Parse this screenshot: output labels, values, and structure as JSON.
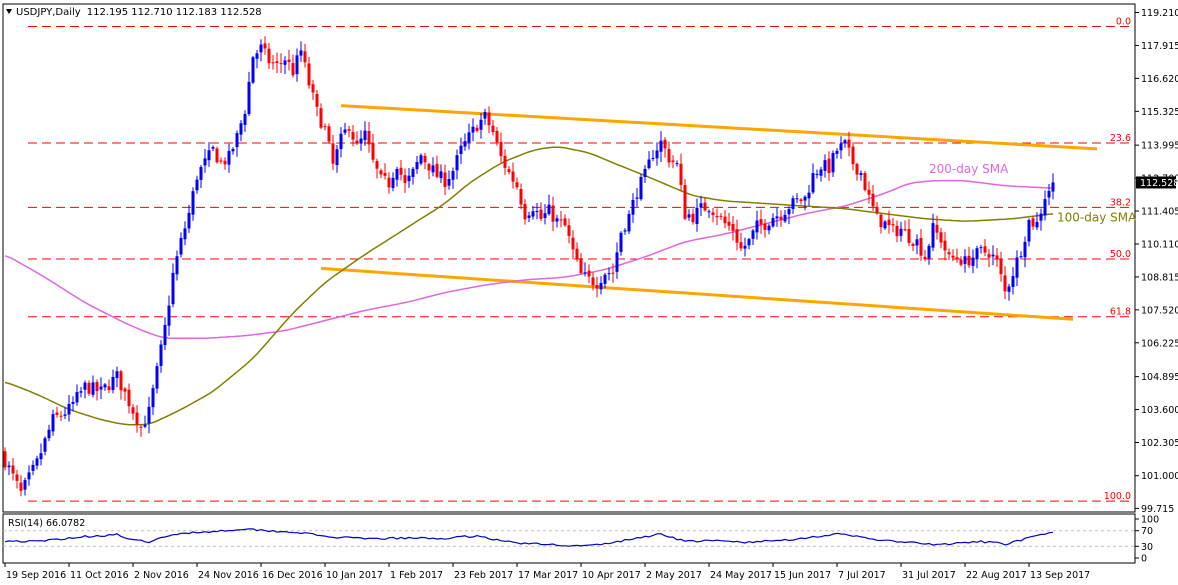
{
  "header": {
    "symbol_label": "USDJPY,Daily",
    "ohlc": "112.195 112.710 112.183 112.528"
  },
  "rsi_header": {
    "label": "RSI(14) 66.0782"
  },
  "colors": {
    "bull": "#0000ff",
    "bear": "#ff0000",
    "fib": "#ff0000",
    "sma200": "#e066e0",
    "sma100": "#808000",
    "channel": "#ffa500",
    "rsi": "#0000cd",
    "grid": "#c0c0c0"
  },
  "chart_data": [
    {
      "type": "candlestick",
      "ylim": [
        99.75,
        119.21
      ],
      "y_ticks": [
        "119.210",
        "117.915",
        "116.620",
        "115.325",
        "113.995",
        "112.700",
        "111.405",
        "110.110",
        "108.815",
        "107.520",
        "106.225",
        "104.895",
        "103.600",
        "102.305",
        "101.000",
        "99.715"
      ],
      "last_price": "112.528",
      "x_ticks": [
        {
          "label": "19 Sep 2016",
          "index": 0
        },
        {
          "label": "11 Oct 2016",
          "index": 16
        },
        {
          "label": "2 Nov 2016",
          "index": 32
        },
        {
          "label": "24 Nov 2016",
          "index": 48
        },
        {
          "label": "16 Dec 2016",
          "index": 64
        },
        {
          "label": "10 Jan 2017",
          "index": 80
        },
        {
          "label": "1 Feb 2017",
          "index": 96
        },
        {
          "label": "23 Feb 2017",
          "index": 112
        },
        {
          "label": "17 Mar 2017",
          "index": 128
        },
        {
          "label": "10 Apr 2017",
          "index": 144
        },
        {
          "label": "2 May 2017",
          "index": 160
        },
        {
          "label": "24 May 2017",
          "index": 176
        },
        {
          "label": "15 Jun 2017",
          "index": 192
        },
        {
          "label": "7 Jul 2017",
          "index": 208
        },
        {
          "label": "31 Jul 2017",
          "index": 224
        },
        {
          "label": "22 Aug 2017",
          "index": 240
        },
        {
          "label": "13 Sep 2017",
          "index": 256
        }
      ],
      "close_path": [
        [
          0,
          101.6
        ],
        [
          4,
          100.3
        ],
        [
          8,
          101.5
        ],
        [
          12,
          103.2
        ],
        [
          16,
          103.6
        ],
        [
          20,
          104.5
        ],
        [
          24,
          104.3
        ],
        [
          28,
          104.9
        ],
        [
          31,
          103.9
        ],
        [
          34,
          102.9
        ],
        [
          36,
          103.5
        ],
        [
          38,
          105.1
        ],
        [
          40,
          106.8
        ],
        [
          42,
          108.9
        ],
        [
          44,
          110.2
        ],
        [
          46,
          111.3
        ],
        [
          48,
          112.8
        ],
        [
          50,
          113.3
        ],
        [
          52,
          113.8
        ],
        [
          54,
          113.3
        ],
        [
          56,
          113.5
        ],
        [
          58,
          114.3
        ],
        [
          60,
          115.4
        ],
        [
          62,
          117.5
        ],
        [
          64,
          117.8
        ],
        [
          66,
          117.3
        ],
        [
          68,
          117.1
        ],
        [
          70,
          117.4
        ],
        [
          72,
          116.9
        ],
        [
          74,
          117.7
        ],
        [
          76,
          116.4
        ],
        [
          78,
          115.3
        ],
        [
          80,
          114.6
        ],
        [
          82,
          113.2
        ],
        [
          84,
          114.2
        ],
        [
          86,
          114.8
        ],
        [
          88,
          113.9
        ],
        [
          90,
          114.4
        ],
        [
          92,
          113.3
        ],
        [
          94,
          112.6
        ],
        [
          96,
          112.5
        ],
        [
          98,
          113.3
        ],
        [
          100,
          112.4
        ],
        [
          102,
          112.9
        ],
        [
          104,
          113.6
        ],
        [
          106,
          113.2
        ],
        [
          108,
          112.8
        ],
        [
          110,
          112.6
        ],
        [
          112,
          113.0
        ],
        [
          114,
          113.8
        ],
        [
          116,
          114.3
        ],
        [
          118,
          114.8
        ],
        [
          120,
          115.1
        ],
        [
          122,
          114.5
        ],
        [
          124,
          113.5
        ],
        [
          126,
          112.9
        ],
        [
          128,
          112.4
        ],
        [
          130,
          111.3
        ],
        [
          132,
          111.6
        ],
        [
          134,
          111.1
        ],
        [
          136,
          111.4
        ],
        [
          138,
          111.0
        ],
        [
          140,
          110.8
        ],
        [
          142,
          109.8
        ],
        [
          144,
          108.9
        ],
        [
          146,
          108.7
        ],
        [
          148,
          108.6
        ],
        [
          150,
          109.0
        ],
        [
          152,
          109.0
        ],
        [
          154,
          110.6
        ],
        [
          156,
          111.2
        ],
        [
          158,
          112.2
        ],
        [
          160,
          112.8
        ],
        [
          162,
          113.7
        ],
        [
          164,
          114.1
        ],
        [
          166,
          113.5
        ],
        [
          168,
          113.2
        ],
        [
          170,
          111.3
        ],
        [
          172,
          111.2
        ],
        [
          174,
          111.5
        ],
        [
          176,
          111.6
        ],
        [
          178,
          111.3
        ],
        [
          180,
          110.9
        ],
        [
          182,
          110.7
        ],
        [
          184,
          109.9
        ],
        [
          186,
          110.2
        ],
        [
          188,
          110.8
        ],
        [
          190,
          110.9
        ],
        [
          192,
          111.2
        ],
        [
          194,
          111.3
        ],
        [
          196,
          111.6
        ],
        [
          198,
          111.8
        ],
        [
          200,
          111.9
        ],
        [
          202,
          112.8
        ],
        [
          204,
          113.2
        ],
        [
          206,
          113.1
        ],
        [
          208,
          113.8
        ],
        [
          210,
          114.0
        ],
        [
          212,
          113.3
        ],
        [
          214,
          112.9
        ],
        [
          216,
          111.9
        ],
        [
          218,
          111.1
        ],
        [
          220,
          110.9
        ],
        [
          222,
          110.6
        ],
        [
          224,
          110.7
        ],
        [
          226,
          110.4
        ],
        [
          228,
          110.2
        ],
        [
          230,
          109.6
        ],
        [
          232,
          110.7
        ],
        [
          234,
          110.3
        ],
        [
          236,
          109.5
        ],
        [
          238,
          109.6
        ],
        [
          240,
          109.4
        ],
        [
          242,
          109.6
        ],
        [
          244,
          109.8
        ],
        [
          246,
          109.8
        ],
        [
          248,
          109.4
        ],
        [
          250,
          108.2
        ],
        [
          252,
          109.0
        ],
        [
          254,
          109.9
        ],
        [
          256,
          111.0
        ],
        [
          258,
          110.9
        ],
        [
          260,
          112.0
        ],
        [
          262,
          112.528
        ]
      ],
      "sma200_path": [
        [
          0,
          109.7
        ],
        [
          10,
          108.8
        ],
        [
          20,
          107.8
        ],
        [
          30,
          107.0
        ],
        [
          36,
          106.6
        ],
        [
          40,
          106.4
        ],
        [
          50,
          106.4
        ],
        [
          60,
          106.5
        ],
        [
          70,
          106.7
        ],
        [
          80,
          107.1
        ],
        [
          90,
          107.5
        ],
        [
          100,
          107.8
        ],
        [
          110,
          108.2
        ],
        [
          120,
          108.5
        ],
        [
          130,
          108.7
        ],
        [
          140,
          108.8
        ],
        [
          150,
          109.1
        ],
        [
          160,
          109.6
        ],
        [
          170,
          110.2
        ],
        [
          180,
          110.5
        ],
        [
          190,
          110.9
        ],
        [
          200,
          111.3
        ],
        [
          210,
          111.6
        ],
        [
          220,
          112.1
        ],
        [
          226,
          112.5
        ],
        [
          232,
          112.6
        ],
        [
          240,
          112.6
        ],
        [
          250,
          112.4
        ],
        [
          262,
          112.3
        ]
      ],
      "sma100_path": [
        [
          0,
          104.7
        ],
        [
          8,
          104.2
        ],
        [
          16,
          103.6
        ],
        [
          24,
          103.2
        ],
        [
          30,
          103.0
        ],
        [
          36,
          103.0
        ],
        [
          44,
          103.6
        ],
        [
          52,
          104.3
        ],
        [
          62,
          105.6
        ],
        [
          72,
          107.4
        ],
        [
          80,
          108.6
        ],
        [
          90,
          109.7
        ],
        [
          100,
          110.7
        ],
        [
          110,
          111.7
        ],
        [
          116,
          112.5
        ],
        [
          124,
          113.3
        ],
        [
          132,
          113.8
        ],
        [
          138,
          113.95
        ],
        [
          146,
          113.7
        ],
        [
          152,
          113.3
        ],
        [
          160,
          112.8
        ],
        [
          166,
          112.4
        ],
        [
          172,
          112.0
        ],
        [
          180,
          111.8
        ],
        [
          190,
          111.7
        ],
        [
          200,
          111.6
        ],
        [
          210,
          111.5
        ],
        [
          220,
          111.3
        ],
        [
          230,
          111.1
        ],
        [
          240,
          111.0
        ],
        [
          252,
          111.1
        ],
        [
          262,
          111.3
        ]
      ],
      "channel_upper": [
        [
          84,
          115.55
        ],
        [
          273,
          113.85
        ]
      ],
      "channel_lower": [
        [
          79,
          109.15
        ],
        [
          267,
          107.15
        ]
      ],
      "fib_levels": [
        {
          "label": "0.0",
          "value": 118.66
        },
        {
          "label": "23.6",
          "value": 114.08
        },
        {
          "label": "38.2",
          "value": 111.55
        },
        {
          "label": "50.0",
          "value": 109.52
        },
        {
          "label": "61.8",
          "value": 107.25
        },
        {
          "label": "100.0",
          "value": 100.0
        }
      ],
      "annotations": [
        {
          "text": "200-day SMA",
          "index": 231,
          "value": 112.9
        },
        {
          "text": "100-day SMA",
          "index": 263,
          "value": 111.0
        }
      ]
    },
    {
      "type": "line",
      "title": "RSI(14) 66.0782",
      "ylim": [
        0,
        100
      ],
      "y_ticks": [
        "100",
        "70",
        "30",
        "0"
      ],
      "levels": [
        70,
        30
      ],
      "value_path": [
        [
          0,
          44
        ],
        [
          8,
          42
        ],
        [
          14,
          49
        ],
        [
          20,
          55
        ],
        [
          28,
          60
        ],
        [
          32,
          45
        ],
        [
          36,
          42
        ],
        [
          44,
          64
        ],
        [
          52,
          68
        ],
        [
          60,
          75
        ],
        [
          66,
          70
        ],
        [
          74,
          65
        ],
        [
          80,
          55
        ],
        [
          90,
          49
        ],
        [
          100,
          51
        ],
        [
          110,
          50
        ],
        [
          118,
          57
        ],
        [
          124,
          44
        ],
        [
          130,
          37
        ],
        [
          138,
          34
        ],
        [
          144,
          30
        ],
        [
          150,
          36
        ],
        [
          156,
          47
        ],
        [
          164,
          62
        ],
        [
          170,
          43
        ],
        [
          178,
          44
        ],
        [
          186,
          40
        ],
        [
          196,
          47
        ],
        [
          208,
          61
        ],
        [
          214,
          54
        ],
        [
          220,
          44
        ],
        [
          226,
          40
        ],
        [
          232,
          34
        ],
        [
          238,
          37
        ],
        [
          244,
          42
        ],
        [
          250,
          36
        ],
        [
          254,
          46
        ],
        [
          258,
          56
        ],
        [
          262,
          66
        ]
      ]
    }
  ]
}
